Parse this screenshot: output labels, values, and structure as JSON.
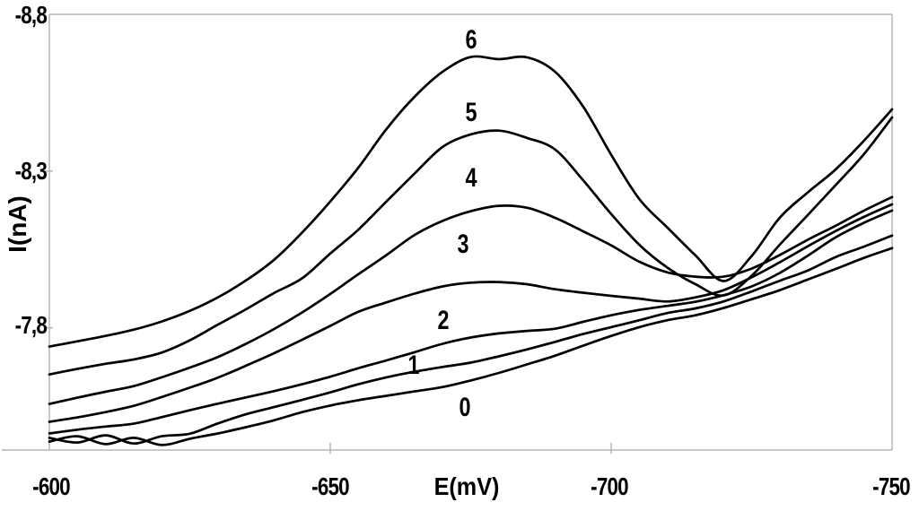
{
  "figure": {
    "background": "#ffffff",
    "curve_color": "#000000",
    "axis_color": "#b5b5b5"
  },
  "chart_data": {
    "type": "line",
    "title": "",
    "xlabel": "E(mV)",
    "ylabel": "I(nA)",
    "grid": false,
    "legend": "none (curves labeled 0-6 inline)",
    "xlim": [
      -600,
      -750
    ],
    "ylim": [
      -8.8,
      -7.41
    ],
    "x_ticks": [
      {
        "label": "-600",
        "value": -600
      },
      {
        "label": "-650",
        "value": -650
      },
      {
        "label": "-700",
        "value": -700
      },
      {
        "label": "-750",
        "value": -750
      }
    ],
    "y_ticks": [
      {
        "label": "-8,8",
        "value": -8.8
      },
      {
        "label": "-8,3",
        "value": -8.3
      },
      {
        "label": "-7,8",
        "value": -7.8
      }
    ],
    "x_values": [
      -600,
      -605,
      -610,
      -615,
      -620,
      -625,
      -630,
      -635,
      -640,
      -645,
      -650,
      -655,
      -660,
      -665,
      -670,
      -675,
      -680,
      -685,
      -690,
      -695,
      -700,
      -705,
      -710,
      -715,
      -720,
      -725,
      -730,
      -735,
      -740,
      -745,
      -750
    ],
    "series": [
      {
        "name": "curve-0",
        "label": "0",
        "label_pos": {
          "E": -674.0,
          "I": -7.543
        },
        "I": [
          -7.437,
          -7.454,
          -7.429,
          -7.449,
          -7.426,
          -7.446,
          -7.463,
          -7.483,
          -7.505,
          -7.531,
          -7.552,
          -7.569,
          -7.583,
          -7.597,
          -7.611,
          -7.632,
          -7.656,
          -7.683,
          -7.711,
          -7.743,
          -7.774,
          -7.802,
          -7.824,
          -7.84,
          -7.863,
          -7.891,
          -7.92,
          -7.954,
          -7.988,
          -8.023,
          -8.054
        ]
      },
      {
        "name": "curve-1",
        "label": "1",
        "label_pos": {
          "E": -664.9,
          "I": -7.68
        },
        "I": [
          -7.449,
          -7.434,
          -7.457,
          -7.431,
          -7.454,
          -7.462,
          -7.495,
          -7.524,
          -7.547,
          -7.57,
          -7.594,
          -7.62,
          -7.642,
          -7.66,
          -7.675,
          -7.689,
          -7.709,
          -7.731,
          -7.755,
          -7.78,
          -7.802,
          -7.824,
          -7.847,
          -7.862,
          -7.884,
          -7.916,
          -7.95,
          -7.983,
          -8.026,
          -8.059,
          -8.094
        ]
      },
      {
        "name": "curve-2",
        "label": "2",
        "label_pos": {
          "E": -670.2,
          "I": -7.823
        },
        "I": [
          -7.463,
          -7.475,
          -7.485,
          -7.494,
          -7.515,
          -7.537,
          -7.558,
          -7.578,
          -7.598,
          -7.62,
          -7.644,
          -7.671,
          -7.696,
          -7.722,
          -7.749,
          -7.769,
          -7.782,
          -7.79,
          -7.797,
          -7.819,
          -7.84,
          -7.857,
          -7.87,
          -7.883,
          -7.904,
          -7.932,
          -7.975,
          -8.03,
          -8.089,
          -8.135,
          -8.174
        ]
      },
      {
        "name": "curve-3",
        "label": "3",
        "label_pos": {
          "E": -673.6,
          "I": -8.066
        },
        "I": [
          -7.5,
          -7.514,
          -7.531,
          -7.551,
          -7.579,
          -7.609,
          -7.641,
          -7.679,
          -7.719,
          -7.762,
          -7.806,
          -7.851,
          -7.881,
          -7.909,
          -7.932,
          -7.944,
          -7.946,
          -7.939,
          -7.923,
          -7.912,
          -7.902,
          -7.893,
          -7.884,
          -7.897,
          -7.92,
          -7.961,
          -8.009,
          -8.06,
          -8.109,
          -8.154,
          -8.194
        ]
      },
      {
        "name": "curve-4",
        "label": "4",
        "label_pos": {
          "E": -675.0,
          "I": -8.277
        },
        "I": [
          -7.557,
          -7.577,
          -7.596,
          -7.614,
          -7.642,
          -7.673,
          -7.707,
          -7.749,
          -7.796,
          -7.849,
          -7.908,
          -7.971,
          -8.032,
          -8.096,
          -8.141,
          -8.172,
          -8.189,
          -8.183,
          -8.151,
          -8.108,
          -8.063,
          -8.011,
          -7.977,
          -7.963,
          -7.963,
          -7.989,
          -8.032,
          -8.081,
          -8.126,
          -8.174,
          -8.217
        ]
      },
      {
        "name": "curve-5",
        "label": "5",
        "label_pos": {
          "E": -675.0,
          "I": -8.486
        },
        "I": [
          -7.651,
          -7.669,
          -7.685,
          -7.699,
          -7.721,
          -7.76,
          -7.81,
          -7.859,
          -7.911,
          -7.958,
          -8.037,
          -8.113,
          -8.203,
          -8.292,
          -8.377,
          -8.417,
          -8.429,
          -8.406,
          -8.369,
          -8.271,
          -8.163,
          -8.065,
          -7.992,
          -7.939,
          -7.903,
          -7.966,
          -8.065,
          -8.16,
          -8.256,
          -8.354,
          -8.471
        ]
      },
      {
        "name": "curve-6",
        "label": "6",
        "label_pos": {
          "E": -675.0,
          "I": -8.717
        },
        "I": [
          -7.74,
          -7.757,
          -7.774,
          -7.794,
          -7.82,
          -7.854,
          -7.897,
          -7.951,
          -8.017,
          -8.104,
          -8.203,
          -8.311,
          -8.434,
          -8.537,
          -8.617,
          -8.664,
          -8.657,
          -8.663,
          -8.617,
          -8.506,
          -8.352,
          -8.211,
          -8.12,
          -8.031,
          -7.949,
          -8.029,
          -8.151,
          -8.232,
          -8.306,
          -8.397,
          -8.497
        ]
      }
    ]
  }
}
